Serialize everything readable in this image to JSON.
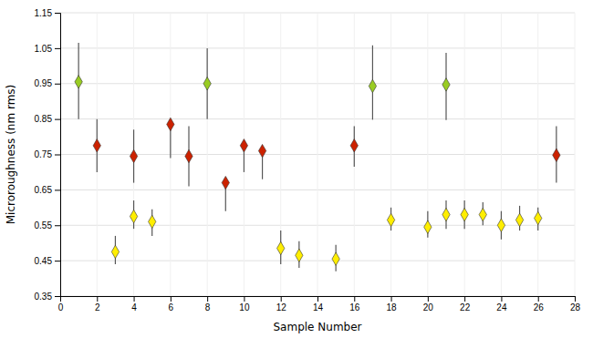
{
  "chart_data": {
    "type": "scatter",
    "xlabel": "Sample Number",
    "ylabel": "Microroughness (nm rms)",
    "xlim": [
      0,
      28
    ],
    "ylim": [
      0.35,
      1.15
    ],
    "xticks": [
      0,
      2,
      4,
      6,
      8,
      10,
      12,
      14,
      16,
      18,
      20,
      22,
      24,
      26,
      28
    ],
    "yticks": [
      0.35,
      0.45,
      0.55,
      0.65,
      0.75,
      0.85,
      0.95,
      1.05,
      1.15
    ],
    "grid": true,
    "marker": "diamond",
    "series": [
      {
        "color": "#99cc22",
        "x": [
          1,
          8,
          17,
          21
        ],
        "values": [
          0.955,
          0.95,
          0.943,
          0.947
        ],
        "error_minus": [
          0.105,
          0.1,
          0.095,
          0.1
        ],
        "error_plus": [
          0.11,
          0.1,
          0.115,
          0.09
        ]
      },
      {
        "color": "#cc2200",
        "x": [
          2,
          4,
          6,
          7,
          9,
          10,
          11,
          16,
          27
        ],
        "values": [
          0.775,
          0.745,
          0.835,
          0.745,
          0.67,
          0.775,
          0.76,
          0.775,
          0.748
        ],
        "error_minus": [
          0.075,
          0.075,
          0.095,
          0.085,
          0.08,
          0.075,
          0.08,
          0.06,
          0.078
        ],
        "error_plus": [
          0.075,
          0.075,
          0.01,
          0.085,
          0.01,
          0.01,
          0.01,
          0.055,
          0.082
        ]
      },
      {
        "color": "#ffee00",
        "x": [
          3,
          4,
          5,
          12,
          13,
          15,
          18,
          20,
          21,
          22,
          23,
          24,
          25,
          26
        ],
        "values": [
          0.475,
          0.575,
          0.56,
          0.485,
          0.465,
          0.455,
          0.565,
          0.545,
          0.58,
          0.58,
          0.58,
          0.55,
          0.565,
          0.57
        ],
        "error_minus": [
          0.035,
          0.035,
          0.04,
          0.045,
          0.035,
          0.035,
          0.03,
          0.03,
          0.04,
          0.04,
          0.03,
          0.04,
          0.03,
          0.035
        ],
        "error_plus": [
          0.045,
          0.045,
          0.035,
          0.05,
          0.04,
          0.04,
          0.035,
          0.045,
          0.04,
          0.04,
          0.035,
          0.04,
          0.04,
          0.03
        ]
      }
    ]
  }
}
